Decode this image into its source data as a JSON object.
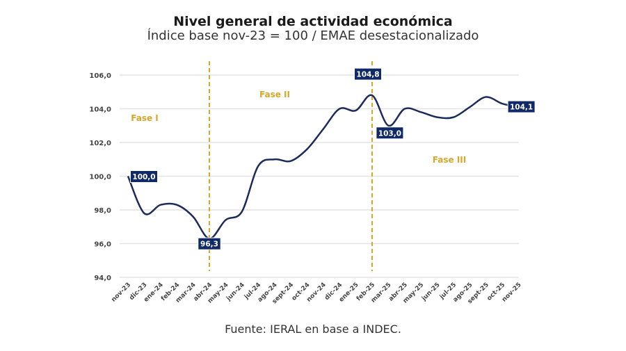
{
  "chart_data": {
    "type": "line",
    "title": "Nivel general de actividad económica",
    "subtitle": "Índice base nov-23 = 100 / EMAE desestacionalizado",
    "source": "Fuente: IERAL en base a INDEC.",
    "categories": [
      "nov-23",
      "dic-23",
      "ene-24",
      "feb-24",
      "mar-24",
      "abr-24",
      "may-24",
      "jun-24",
      "jul-24",
      "ago-24",
      "sept-24",
      "oct-24",
      "nov-24",
      "dic-24",
      "ene-25",
      "feb-25",
      "mar-25",
      "abr-25",
      "may-25",
      "jun-25",
      "jul-25",
      "ago-25",
      "sept-25",
      "oct-25",
      "nov-25"
    ],
    "values": [
      100.0,
      97.8,
      98.3,
      98.3,
      97.6,
      96.3,
      97.4,
      97.9,
      100.6,
      101.0,
      100.9,
      101.6,
      102.8,
      104.0,
      103.9,
      104.8,
      103.0,
      104.0,
      103.8,
      103.5,
      103.5,
      104.1,
      104.7,
      104.3,
      104.1
    ],
    "ylim": [
      94,
      106
    ],
    "yticks": [
      "94,0",
      "96,0",
      "98,0",
      "100,0",
      "102,0",
      "104,0",
      "106,0"
    ],
    "grid": true,
    "data_labels": [
      {
        "index": 0,
        "text": "100,0"
      },
      {
        "index": 5,
        "text": "96,3"
      },
      {
        "index": 15,
        "text": "104,8"
      },
      {
        "index": 16,
        "text": "103,0"
      },
      {
        "index": 24,
        "text": "104,1"
      }
    ],
    "phase_lines": [
      {
        "index": 5
      },
      {
        "index": 15
      }
    ],
    "phases": [
      {
        "text": "Fase I"
      },
      {
        "text": "Fase II"
      },
      {
        "text": "Fase III"
      }
    ],
    "colors": {
      "line": "#1c2b5a",
      "label_bg": "#0f2a66",
      "phase": "#d4a82a",
      "grid": "#e3e3e3"
    }
  }
}
